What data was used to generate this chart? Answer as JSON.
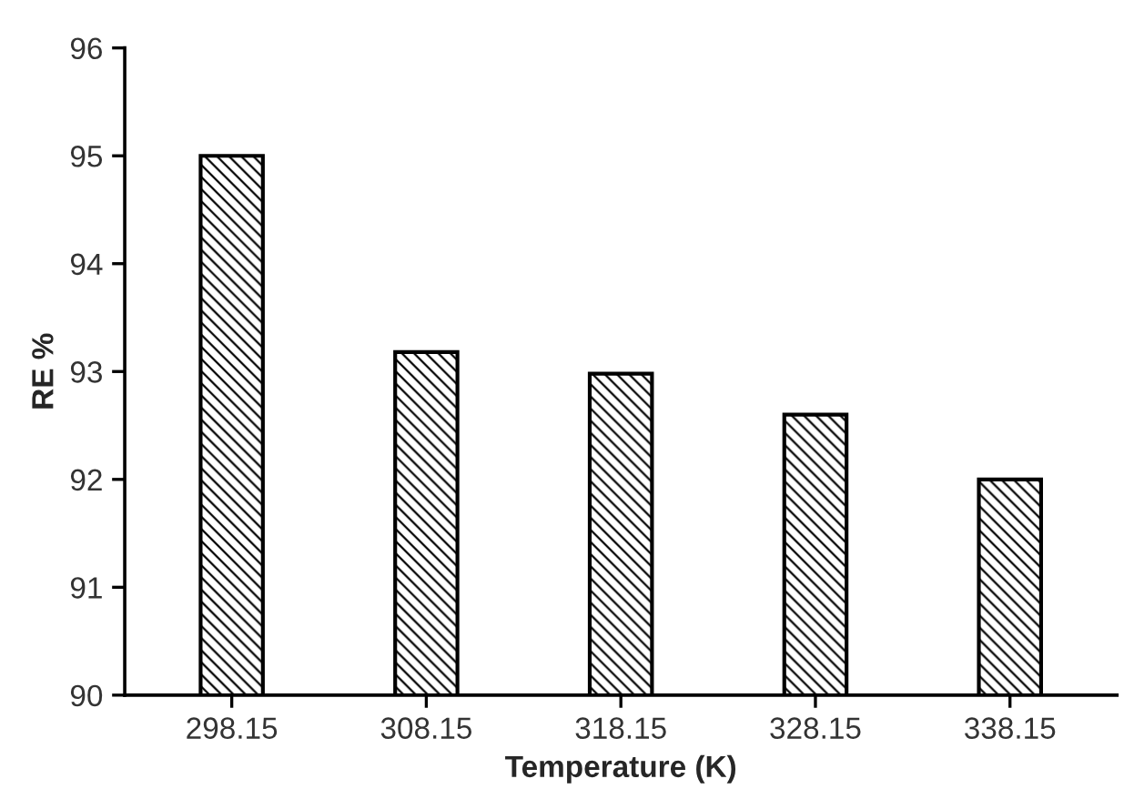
{
  "chart_data": {
    "type": "bar",
    "xlabel": "Temperature (K)",
    "ylabel": "RE %",
    "categories": [
      "298.15",
      "308.15",
      "318.15",
      "328.15",
      "338.15"
    ],
    "values": [
      95.0,
      93.18,
      92.98,
      92.6,
      92.0
    ],
    "color": "#000000",
    "ylim": [
      90,
      96
    ],
    "yticks": [
      90,
      91,
      92,
      93,
      94,
      95,
      96
    ],
    "grid": false,
    "legend": false
  }
}
